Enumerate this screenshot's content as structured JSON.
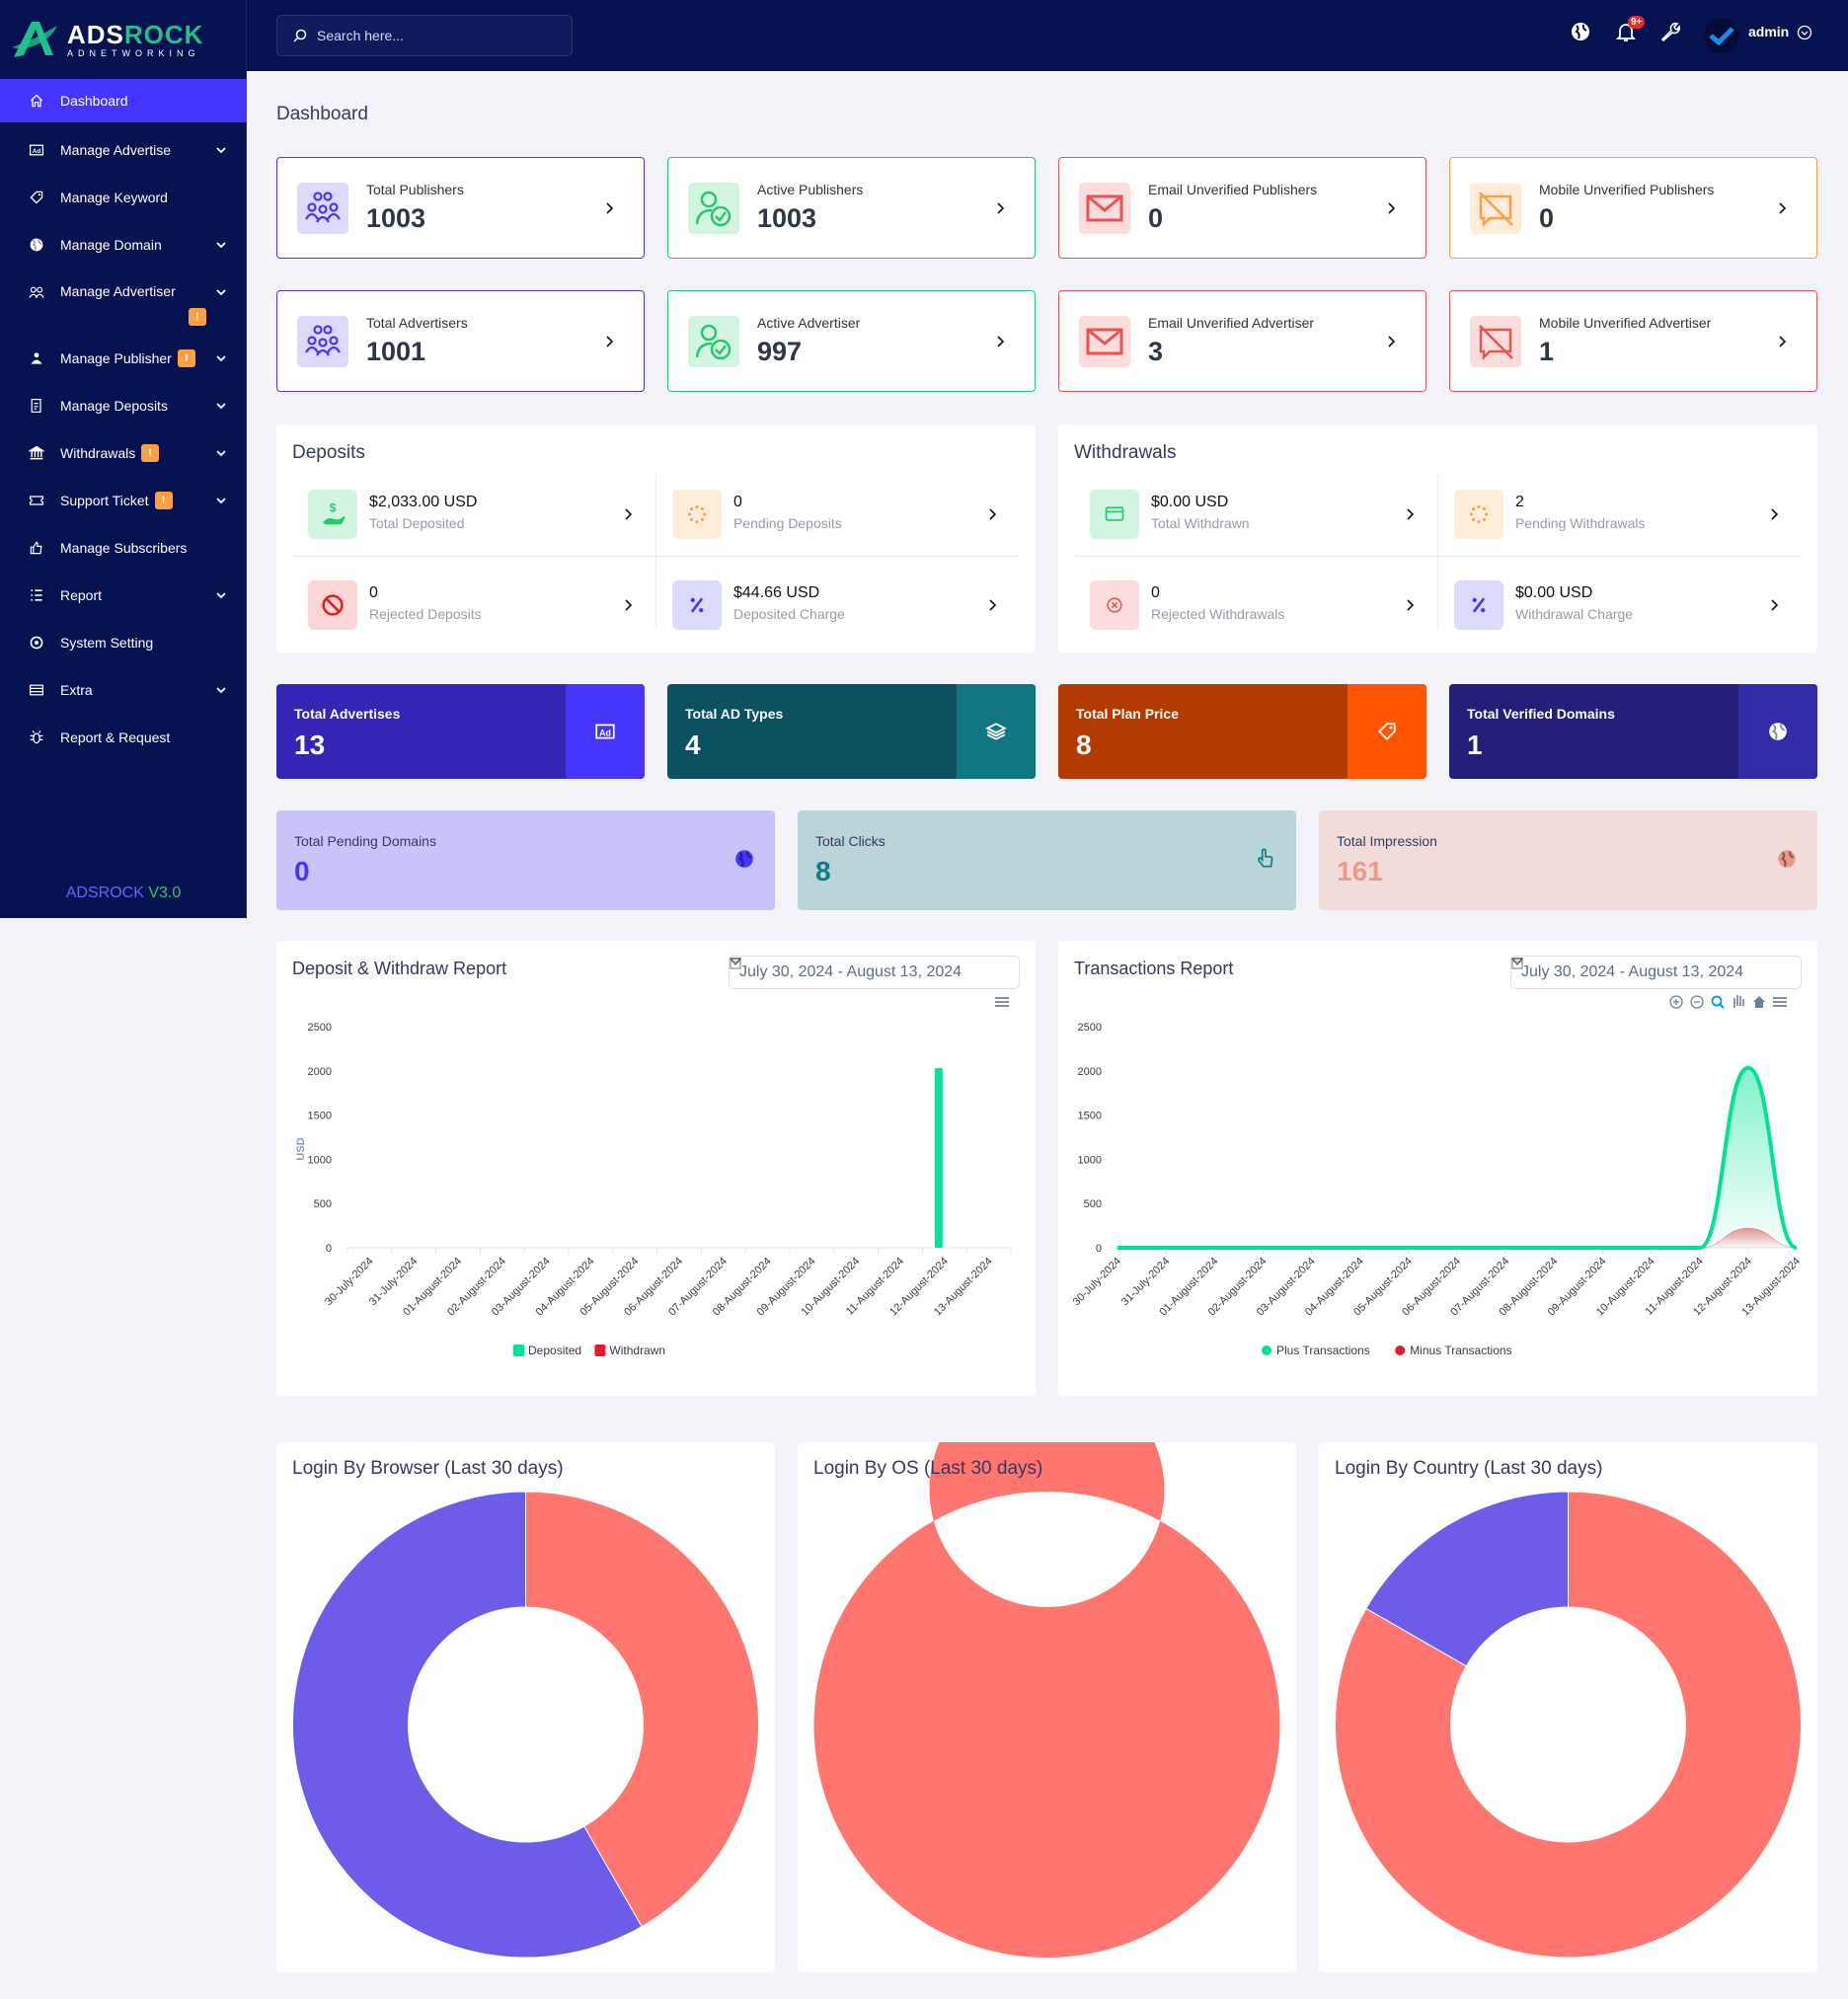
{
  "brand": {
    "name_a": "ADS",
    "name_b": "ROCK",
    "tagline": "ADNETWORKING",
    "footer_name": "ADSROCK",
    "footer_version": "V3.0"
  },
  "header": {
    "search_placeholder": "Search here...",
    "notification_count": "9+",
    "user": "admin"
  },
  "sidebar": {
    "items": [
      {
        "label": "Dashboard",
        "icon": "home-icon",
        "active": true
      },
      {
        "label": "Manage Advertise",
        "icon": "ad-icon",
        "chevron": true
      },
      {
        "label": "Manage Keyword",
        "icon": "tag-icon"
      },
      {
        "label": "Manage Domain",
        "icon": "globe-icon",
        "chevron": true
      },
      {
        "label": "Manage Advertiser",
        "icon": "users-icon",
        "chevron": true,
        "badge": "!",
        "badge_below": true
      },
      {
        "label": "Manage Publisher",
        "icon": "publisher-icon",
        "chevron": true,
        "badge": "!"
      },
      {
        "label": "Manage Deposits",
        "icon": "deposit-icon",
        "chevron": true
      },
      {
        "label": "Withdrawals",
        "icon": "bank-icon",
        "chevron": true,
        "badge": "!"
      },
      {
        "label": "Support Ticket",
        "icon": "ticket-icon",
        "chevron": true,
        "badge": "!"
      },
      {
        "label": "Manage Subscribers",
        "icon": "thumbs-up-icon"
      },
      {
        "label": "Report",
        "icon": "list-icon",
        "chevron": true
      },
      {
        "label": "System Setting",
        "icon": "settings-icon"
      },
      {
        "label": "Extra",
        "icon": "server-icon",
        "chevron": true
      },
      {
        "label": "Report & Request",
        "icon": "bug-icon"
      }
    ]
  },
  "page_title": "Dashboard",
  "stat_cards": [
    {
      "label": "Total Publishers",
      "value": "1003",
      "icon": "users-group-icon",
      "color": "#4634ff",
      "tint": "#dcdaff"
    },
    {
      "label": "Active Publishers",
      "value": "1003",
      "icon": "user-check-icon",
      "color": "#28c76f",
      "tint": "#d4f4e2"
    },
    {
      "label": "Email Unverified Publishers",
      "value": "0",
      "icon": "envelope-icon",
      "color": "#ea5455",
      "tint": "#fbdddd"
    },
    {
      "label": "Mobile Unverified Publishers",
      "value": "0",
      "icon": "mobile-off-icon",
      "color": "#ff9f43",
      "tint": "#ffecd9"
    },
    {
      "label": "Total Advertisers",
      "value": "1001",
      "icon": "users-group-icon",
      "color": "#4634ff",
      "tint": "#dcdaff"
    },
    {
      "label": "Active Advertiser",
      "value": "997",
      "icon": "user-check-icon",
      "color": "#28c76f",
      "tint": "#d4f4e2"
    },
    {
      "label": "Email Unverified Advertiser",
      "value": "3",
      "icon": "envelope-icon",
      "color": "#ea5455",
      "tint": "#fbdddd"
    },
    {
      "label": "Mobile Unverified Advertiser",
      "value": "1",
      "icon": "mobile-off-icon",
      "color": "#ea5455",
      "tint": "#fbdddd"
    }
  ],
  "deposits": {
    "title": "Deposits",
    "items": [
      {
        "value": "$2,033.00 USD",
        "label": "Total Deposited",
        "icon": "hand-dollar-icon",
        "color": "#28c76f",
        "tint": "#d4f4e2"
      },
      {
        "value": "0",
        "label": "Pending Deposits",
        "icon": "spinner-icon",
        "color": "#ff9f43",
        "tint": "#ffecd9"
      },
      {
        "value": "0",
        "label": "Rejected Deposits",
        "icon": "ban-icon",
        "color": "#ea1c1c",
        "tint": "#fbd6d6"
      },
      {
        "value": "$44.66 USD",
        "label": "Deposited Charge",
        "icon": "percent-icon",
        "color": "#4634ff",
        "tint": "#dcdaff"
      }
    ]
  },
  "withdrawals": {
    "title": "Withdrawals",
    "items": [
      {
        "value": "$0.00 USD",
        "label": "Total Withdrawn",
        "icon": "card-icon",
        "color": "#28c76f",
        "tint": "#d4f4e2"
      },
      {
        "value": "2",
        "label": "Pending Withdrawals",
        "icon": "spinner-icon",
        "color": "#ff9f43",
        "tint": "#ffecd9"
      },
      {
        "value": "0",
        "label": "Rejected Withdrawals",
        "icon": "x-circle-icon",
        "color": "#ea5455",
        "tint": "#fbdddd"
      },
      {
        "value": "$0.00 USD",
        "label": "Withdrawal Charge",
        "icon": "percent-icon",
        "color": "#4634ff",
        "tint": "#dcdaff"
      }
    ]
  },
  "summary_cards": [
    {
      "label": "Total Advertises",
      "value": "13",
      "icon": "ad-icon",
      "bg": "#3326b5",
      "side": "#4634ff"
    },
    {
      "label": "Total AD Types",
      "value": "4",
      "icon": "layers-icon",
      "bg": "#0d5060",
      "side": "#117680"
    },
    {
      "label": "Total Plan Price",
      "value": "8",
      "icon": "tag-icon",
      "bg": "#b33a00",
      "side": "#ff5500"
    },
    {
      "label": "Total Verified Domains",
      "value": "1",
      "icon": "globe-icon",
      "bg": "#231e78",
      "side": "#332ba8"
    }
  ],
  "mini_cards": [
    {
      "label": "Total Pending Domains",
      "value": "0",
      "icon": "globe-icon",
      "bg": "#c8c4fa",
      "color": "#4634ff"
    },
    {
      "label": "Total Clicks",
      "value": "8",
      "icon": "pointer-icon",
      "bg": "#bad5da",
      "color": "#127a85"
    },
    {
      "label": "Total Impression",
      "value": "161",
      "icon": "globe-icon",
      "bg": "#f2dcd9",
      "color": "#ea9a8a"
    }
  ],
  "chart_data": [
    {
      "type": "bar",
      "title": "Deposit & Withdraw Report",
      "date_range": "July 30, 2024 - August 13, 2024",
      "ylabel": "USD",
      "ylim": [
        0,
        2500
      ],
      "yticks": [
        0,
        500,
        1000,
        1500,
        2000,
        2500
      ],
      "legend": "bottom",
      "categories": [
        "30-July-2024",
        "31-July-2024",
        "01-August-2024",
        "02-August-2024",
        "03-August-2024",
        "04-August-2024",
        "05-August-2024",
        "06-August-2024",
        "07-August-2024",
        "08-August-2024",
        "09-August-2024",
        "10-August-2024",
        "11-August-2024",
        "12-August-2024",
        "13-August-2024"
      ],
      "series": [
        {
          "name": "Deposited",
          "color": "#00e396",
          "values": [
            0,
            0,
            0,
            0,
            0,
            0,
            0,
            0,
            0,
            0,
            0,
            0,
            0,
            2033,
            0
          ]
        },
        {
          "name": "Withdrawn",
          "color": "#e21d2a",
          "values": [
            0,
            0,
            0,
            0,
            0,
            0,
            0,
            0,
            0,
            0,
            0,
            0,
            0,
            0,
            0
          ]
        }
      ]
    },
    {
      "type": "area",
      "title": "Transactions Report",
      "date_range": "July 30, 2024 - August 13, 2024",
      "ylim": [
        0,
        2500
      ],
      "yticks": [
        0,
        500,
        1000,
        1500,
        2000,
        2500
      ],
      "legend": "bottom",
      "categories": [
        "30-July-2024",
        "31-July-2024",
        "01-August-2024",
        "02-August-2024",
        "03-August-2024",
        "04-August-2024",
        "05-August-2024",
        "06-August-2024",
        "07-August-2024",
        "08-August-2024",
        "09-August-2024",
        "10-August-2024",
        "11-August-2024",
        "12-August-2024",
        "13-August-2024"
      ],
      "series": [
        {
          "name": "Plus Transactions",
          "color": "#00e396",
          "values": [
            0,
            0,
            0,
            0,
            0,
            0,
            0,
            0,
            0,
            0,
            0,
            0,
            0,
            2033,
            0
          ]
        },
        {
          "name": "Minus Transactions",
          "color": "#e21d2a",
          "values": [
            0,
            0,
            0,
            0,
            0,
            0,
            0,
            0,
            0,
            0,
            0,
            0,
            0,
            220,
            0
          ]
        }
      ]
    },
    {
      "type": "pie",
      "title": "Login By Browser (Last 30 days)",
      "slices": [
        {
          "value": 41.7,
          "color": "#ff7570"
        },
        {
          "value": 58.3,
          "color": "#6c5ce7"
        }
      ]
    },
    {
      "type": "pie",
      "title": "Login By OS (Last 30 days)",
      "slices": [
        {
          "value": 100,
          "color": "#ff7570"
        }
      ]
    },
    {
      "type": "pie",
      "title": "Login By Country (Last 30 days)",
      "slices": [
        {
          "value": 83.3,
          "color": "#ff7570"
        },
        {
          "value": 16.7,
          "color": "#6c5ce7"
        }
      ]
    }
  ]
}
